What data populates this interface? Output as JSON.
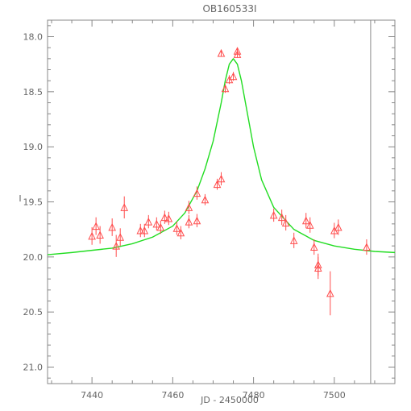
{
  "chart_data": {
    "type": "scatter",
    "title": "OB160533I",
    "xlabel": "JD - 2450000",
    "ylabel": "I",
    "xlim": [
      7429,
      7515
    ],
    "ylim": [
      21.15,
      17.85
    ],
    "y_inverted": true,
    "xticks": [
      7440,
      7460,
      7480,
      7500
    ],
    "yticks": [
      18.0,
      18.5,
      19.0,
      19.5,
      20.0,
      20.5,
      21.0
    ],
    "xtick_labels": [
      "7440",
      "7460",
      "7480",
      "7500"
    ],
    "ytick_labels": [
      "18.0",
      "18.5",
      "19.0",
      "19.5",
      "20.0",
      "20.5",
      "21.0"
    ],
    "colors": {
      "data": "#ff4d4d",
      "model": "#22dd22",
      "axes": "#888888",
      "text": "#666666"
    },
    "vertical_line_x": 7509,
    "series": [
      {
        "marker": "triangle",
        "x": [
          7440,
          7441,
          7442,
          7445,
          7446,
          7447,
          7448,
          7452,
          7453,
          7454,
          7456,
          7457,
          7458,
          7459,
          7461,
          7462,
          7464,
          7464,
          7466,
          7466,
          7468,
          7471,
          7472,
          7472,
          7473,
          7474,
          7475,
          7476,
          7476,
          7485,
          7487,
          7488,
          7490,
          7493,
          7494,
          7495,
          7496,
          7496,
          7499,
          7500,
          7501,
          7508
        ],
        "y": [
          19.81,
          19.72,
          19.8,
          19.73,
          19.9,
          19.82,
          19.55,
          19.76,
          19.76,
          19.68,
          19.7,
          19.73,
          19.64,
          19.65,
          19.74,
          19.78,
          19.68,
          19.55,
          19.67,
          19.42,
          19.48,
          19.34,
          19.29,
          18.15,
          18.47,
          18.39,
          18.36,
          18.13,
          18.16,
          19.62,
          19.64,
          19.69,
          19.85,
          19.67,
          19.71,
          19.91,
          20.07,
          20.1,
          20.33,
          19.76,
          19.73,
          19.91
        ],
        "err": [
          0.08,
          0.08,
          0.08,
          0.08,
          0.1,
          0.08,
          0.1,
          0.06,
          0.06,
          0.06,
          0.06,
          0.06,
          0.06,
          0.06,
          0.06,
          0.06,
          0.06,
          0.06,
          0.06,
          0.06,
          0.05,
          0.05,
          0.06,
          0.03,
          0.04,
          0.04,
          0.04,
          0.03,
          0.03,
          0.06,
          0.07,
          0.07,
          0.07,
          0.07,
          0.07,
          0.07,
          0.1,
          0.1,
          0.2,
          0.07,
          0.07,
          0.07
        ]
      },
      {
        "type": "line",
        "x": [
          7429,
          7435,
          7440,
          7445,
          7450,
          7455,
          7460,
          7463,
          7466,
          7468,
          7470,
          7472,
          7473,
          7474,
          7475,
          7476,
          7477,
          7478,
          7480,
          7482,
          7485,
          7490,
          7495,
          7500,
          7505,
          7510,
          7515
        ],
        "y": [
          19.98,
          19.96,
          19.94,
          19.92,
          19.88,
          19.82,
          19.72,
          19.6,
          19.4,
          19.2,
          18.95,
          18.6,
          18.4,
          18.25,
          18.2,
          18.25,
          18.4,
          18.6,
          19.0,
          19.3,
          19.55,
          19.75,
          19.85,
          19.9,
          19.93,
          19.95,
          19.96
        ]
      }
    ]
  }
}
